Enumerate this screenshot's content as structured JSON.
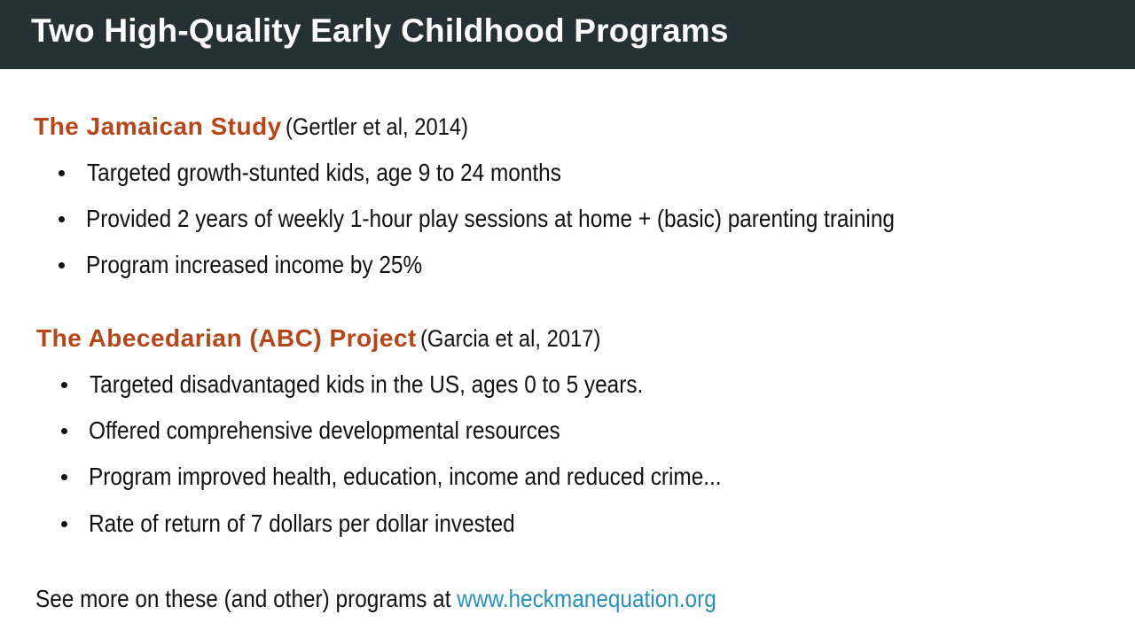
{
  "title": "Two High-Quality Early Childhood Programs",
  "colors": {
    "title_bar_bg": "#263133",
    "heading_accent": "#b5461a",
    "link": "#2a8fb5"
  },
  "sections": [
    {
      "name": "The Jamaican Study",
      "citation": "(Gertler et al, 2014)",
      "bullets": [
        "Targeted growth-stunted kids, age 9 to 24 months",
        "Provided 2 years of weekly 1-hour play sessions at home + (basic) parenting training",
        "Program increased income by 25%"
      ]
    },
    {
      "name": "The Abecedarian (ABC) Project",
      "citation": "(Garcia et al, 2017)",
      "bullets": [
        "Targeted disadvantaged kids in the US, ages 0 to 5 years.",
        "Offered comprehensive developmental resources",
        "Program improved health, education, income and reduced crime...",
        "Rate of return of 7 dollars per dollar invested"
      ]
    }
  ],
  "footer": {
    "text": "See more on these (and other) programs at ",
    "link_text": "www.heckmanequation.org"
  }
}
